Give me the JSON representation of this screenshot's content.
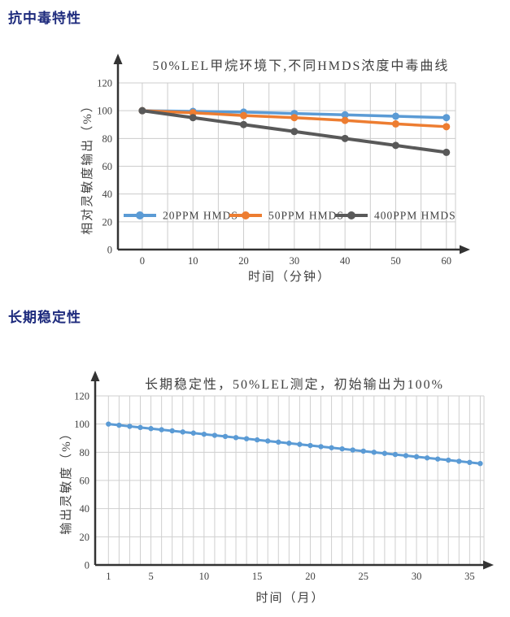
{
  "page": {
    "background": "#ffffff",
    "heading_color": "#1e2b7d",
    "text_color": "#404040"
  },
  "headings": {
    "poisoning": "抗中毒特性",
    "stability": "长期稳定性"
  },
  "chart_data": [
    {
      "type": "line",
      "title": "50%LEL甲烷环境下,不同HMDS浓度中毒曲线",
      "xlabel": "时间（分钟）",
      "ylabel": "相对灵敏度输出（%）",
      "x": [
        0,
        10,
        20,
        30,
        40,
        50,
        60
      ],
      "xticks": [
        0,
        10,
        20,
        30,
        40,
        50,
        60
      ],
      "yticks": [
        0,
        20,
        40,
        60,
        80,
        100,
        120
      ],
      "xlim": [
        -4.8,
        61.8
      ],
      "ylim": [
        0,
        120
      ],
      "xgrid": {
        "start": 0,
        "step": 5,
        "end": 60
      },
      "grid": true,
      "legend_position": "inside-bottom",
      "axis_color": "#333333",
      "grid_color": "#cccccc",
      "series": [
        {
          "name": "20PPM HMDS",
          "color": "#5B9BD5",
          "width": 3.5,
          "values": [
            100,
            99.5,
            99,
            98,
            97,
            96,
            95
          ]
        },
        {
          "name": "50PPM HMDS",
          "color": "#ED7D31",
          "width": 3.5,
          "values": [
            100,
            98.5,
            96.5,
            95,
            93,
            90.5,
            88.5
          ]
        },
        {
          "name": "400PPM HMDS",
          "color": "#595959",
          "width": 4,
          "values": [
            100,
            95,
            90,
            85,
            80,
            75,
            70
          ]
        }
      ]
    },
    {
      "type": "line",
      "title": "长期稳定性，50%LEL测定，初始输出为100%",
      "xlabel": "时间（月）",
      "ylabel": "输出灵敏度（%）",
      "x": [
        1,
        2,
        3,
        4,
        5,
        6,
        7,
        8,
        9,
        10,
        11,
        12,
        13,
        14,
        15,
        16,
        17,
        18,
        19,
        20,
        21,
        22,
        23,
        24,
        25,
        26,
        27,
        28,
        29,
        30,
        31,
        32,
        33,
        34,
        35,
        36
      ],
      "xticks": [
        1,
        5,
        10,
        15,
        20,
        25,
        30,
        35
      ],
      "yticks": [
        0,
        20,
        40,
        60,
        80,
        100,
        120
      ],
      "xlim": [
        -0.25,
        36.35
      ],
      "ylim": [
        0,
        120
      ],
      "xgrid": {
        "start": 1,
        "step": 1,
        "end": 36
      },
      "grid": true,
      "legend_position": "none",
      "axis_color": "#333333",
      "grid_color": "#cfcfcf",
      "series": [
        {
          "name": "输出灵敏度",
          "color": "#5B9BD5",
          "width": 3,
          "values": [
            100,
            99.2,
            98.4,
            97.6,
            96.8,
            96,
            95.2,
            94.4,
            93.6,
            92.8,
            92,
            91.2,
            90.4,
            89.6,
            88.8,
            88,
            87.2,
            86.4,
            85.6,
            84.8,
            84,
            83.2,
            82.4,
            81.6,
            80.8,
            80,
            79.2,
            78.4,
            77.6,
            76.8,
            76,
            75.2,
            74.4,
            73.6,
            72.8,
            72
          ]
        }
      ]
    }
  ]
}
